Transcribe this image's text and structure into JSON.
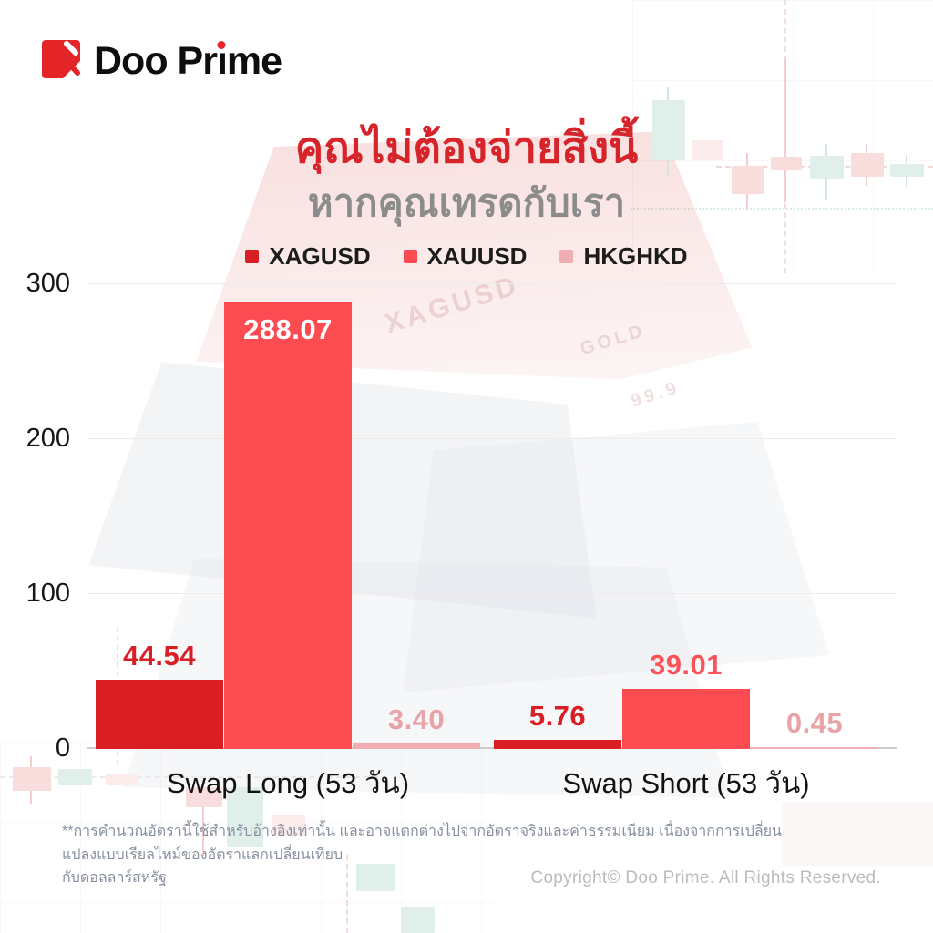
{
  "brand": {
    "name": "Doo Prime",
    "name_parts": [
      "Doo Pr",
      "ı",
      "me"
    ],
    "logo_color": "#e42527",
    "dot_color": "#e8252b"
  },
  "title": {
    "line1": "คุณไม่ต้องจ่ายสิ่งนี้",
    "line2": "หากคุณเทรดกับเรา",
    "line1_color": "#d6242a",
    "line2_color": "#8c8c8c"
  },
  "chart_data": {
    "type": "bar",
    "categories": [
      "Swap Long (53 วัน)",
      "Swap Short (53 วัน)"
    ],
    "series": [
      {
        "name": "XAGUSD",
        "color": "#d91e24",
        "label_color": "#d91e24",
        "values": [
          44.54,
          5.76
        ]
      },
      {
        "name": "XAUUSD",
        "color": "#fc4b51",
        "label_color": "#fd5358",
        "values": [
          288.07,
          39.01
        ]
      },
      {
        "name": "HKGHKD",
        "color": "#f0aeb2",
        "label_color": "#e9a2a6",
        "values": [
          3.4,
          0.45
        ]
      }
    ],
    "ylim": [
      0,
      300
    ],
    "yticks": [
      0,
      100,
      200,
      300
    ],
    "grid": "horizontal",
    "legend_position": "top",
    "value_label_decimals": 2
  },
  "watermark": {
    "texts": [
      "XAGUSD",
      "GOLD",
      "99.9"
    ]
  },
  "footnote": {
    "line1": "**การคำนวณอัตรานี้ใช้สำหรับอ้างอิงเท่านั้น และอาจแตกต่างไปจากอัตราจริงและค่าธรรมเนียม เนื่องจากการเปลี่ยนแปลงแบบเรียลไทม์ของอัตราแลกเปลี่ยนเทียบ",
    "line2": "กับดอลลาร์สหรัฐ"
  },
  "copyright": "Copyright© Doo Prime. All Rights Reserved."
}
